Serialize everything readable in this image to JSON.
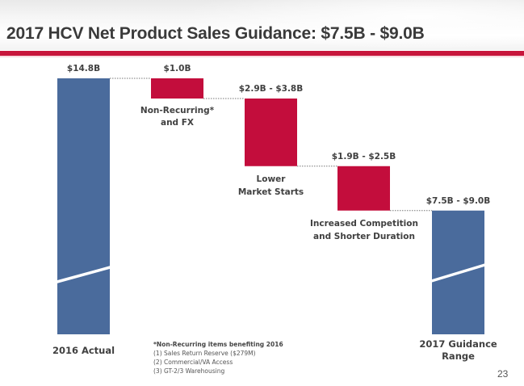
{
  "header": {
    "title": "2017 HCV Net Product Sales Guidance: $7.5B - $9.0B"
  },
  "colors": {
    "accent_red": "#c8163c",
    "total_blue": "#4a6b9c",
    "decrease_red": "#c30d3c",
    "text": "#404040"
  },
  "chart_data": {
    "type": "waterfall",
    "title": "2017 HCV Net Product Sales Guidance: $7.5B - $9.0B",
    "units": "USD billions",
    "axis_break": true,
    "steps": [
      {
        "name": "2016 Actual",
        "kind": "total",
        "value": 14.8,
        "value_label": "$14.8B",
        "category_label": "2016 Actual"
      },
      {
        "name": "Non-Recurring* and FX",
        "kind": "decrease",
        "value": 1.0,
        "value_label": "$1.0B",
        "category_label_lines": [
          "Non-Recurring*",
          "and FX"
        ]
      },
      {
        "name": "Lower Market Starts",
        "kind": "decrease",
        "range": [
          2.9,
          3.8
        ],
        "value_label": "$2.9B - $3.8B",
        "category_label_lines": [
          "Lower",
          "Market Starts"
        ]
      },
      {
        "name": "Increased Competition and Shorter Duration",
        "kind": "decrease",
        "range": [
          1.9,
          2.5
        ],
        "value_label": "$1.9B - $2.5B",
        "category_label_lines": [
          "Increased Competition",
          "and Shorter Duration"
        ]
      },
      {
        "name": "2017 Guidance Range",
        "kind": "total",
        "range": [
          7.5,
          9.0
        ],
        "value_label": "$7.5B - $9.0B",
        "category_label_lines": [
          "2017 Guidance",
          "Range"
        ]
      }
    ]
  },
  "footnote": {
    "heading": "*Non-Recurring items benefiting 2016",
    "items": [
      "(1)  Sales Return Reserve ($279M)",
      "(2)  Commercial/VA Access",
      "(3)  GT-2/3 Warehousing"
    ]
  },
  "page_number": "23"
}
